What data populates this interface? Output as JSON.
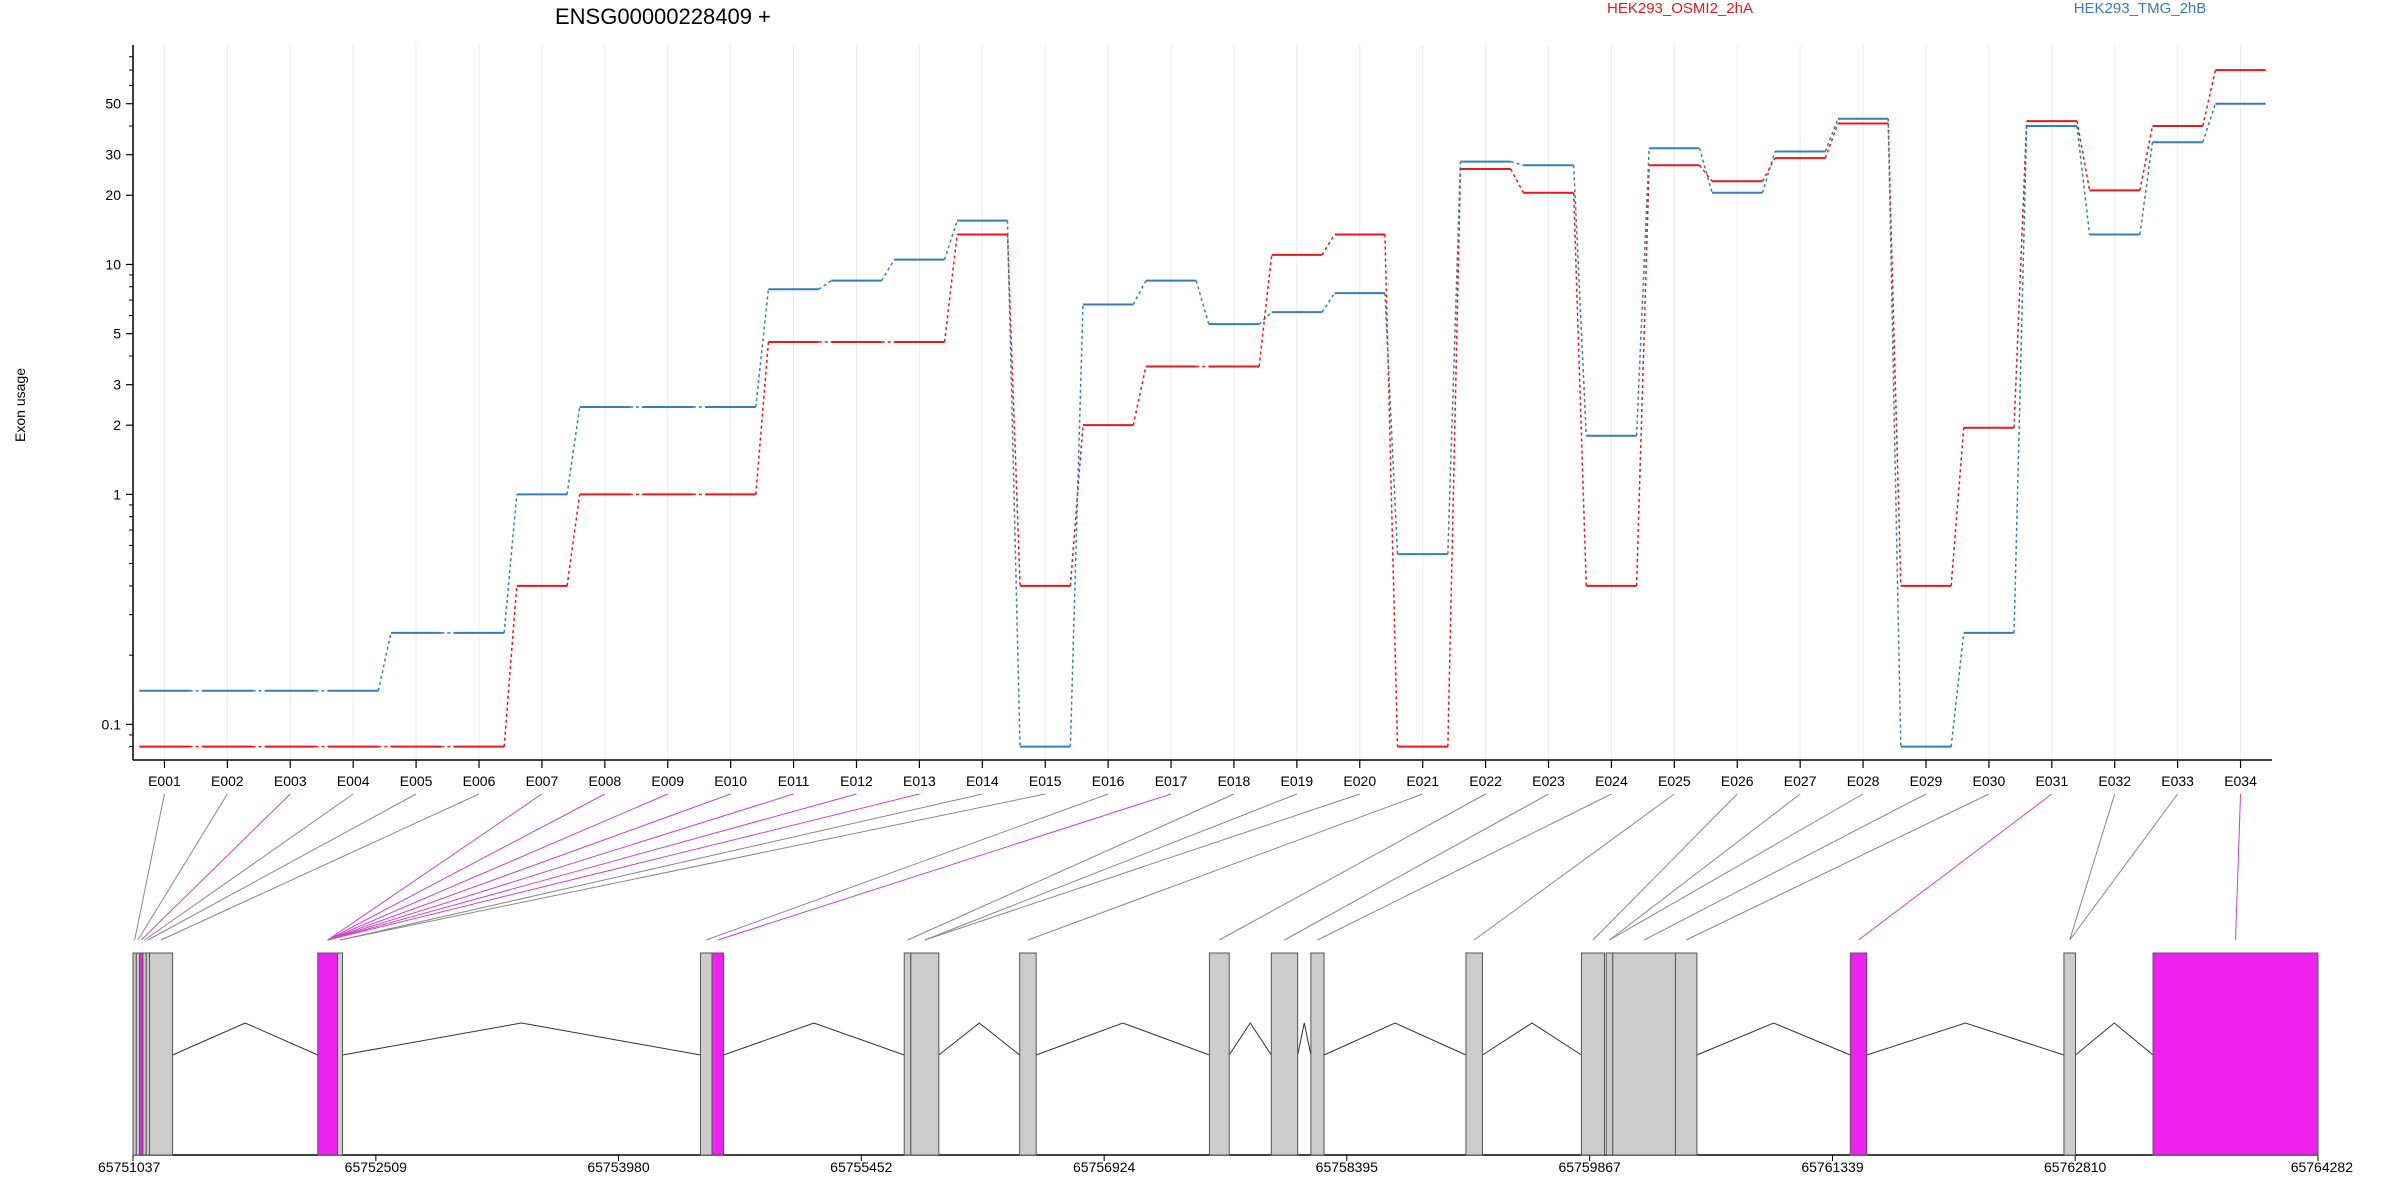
{
  "chart_data": {
    "type": "line",
    "title": "ENSG00000228409 +",
    "ylabel": "Exon usage",
    "y_scale": "log",
    "ylim": [
      0.07,
      90
    ],
    "y_ticks": [
      0.1,
      1,
      2,
      3,
      5,
      10,
      20,
      30,
      50
    ],
    "y_tick_labels": [
      "0.1",
      "1",
      "2",
      "3",
      "5",
      "10",
      "20",
      "30",
      "50"
    ],
    "categories": [
      "E001",
      "E002",
      "E003",
      "E004",
      "E005",
      "E006",
      "E007",
      "E008",
      "E009",
      "E010",
      "E011",
      "E012",
      "E013",
      "E014",
      "E015",
      "E016",
      "E017",
      "E018",
      "E019",
      "E020",
      "E021",
      "E022",
      "E023",
      "E024",
      "E025",
      "E026",
      "E027",
      "E028",
      "E029",
      "E030",
      "E031",
      "E032",
      "E033",
      "E034"
    ],
    "legend_position": "top",
    "grid": true,
    "series": [
      {
        "name": "HEK293_OSMI2_2hA",
        "color": "#e41a1c",
        "values": [
          0.08,
          0.08,
          0.08,
          0.08,
          0.08,
          0.08,
          0.4,
          1.0,
          1.0,
          1.0,
          4.6,
          4.6,
          4.6,
          13.5,
          0.4,
          2.0,
          3.6,
          3.6,
          11.0,
          13.5,
          0.08,
          26,
          20.5,
          0.4,
          27,
          23,
          29,
          41,
          0.4,
          1.95,
          42,
          21,
          40,
          70
        ]
      },
      {
        "name": "HEK293_TMG_2hB",
        "color": "#377eb8",
        "values": [
          0.14,
          0.14,
          0.14,
          0.14,
          0.25,
          0.25,
          1.0,
          2.4,
          2.4,
          2.4,
          7.8,
          8.5,
          10.5,
          15.5,
          0.08,
          6.7,
          8.5,
          5.5,
          6.2,
          7.5,
          0.55,
          28,
          27,
          1.8,
          32,
          20.5,
          31,
          43,
          0.08,
          0.25,
          40,
          13.5,
          34,
          50
        ]
      }
    ],
    "gene_model": {
      "coord_ticks": [
        "65751037",
        "65752509",
        "65753980",
        "65755452",
        "65756924",
        "65758395",
        "65759867",
        "65761339",
        "65762810",
        "65764282"
      ],
      "exon_colors": {
        "normal": "#cccccc",
        "highlight": "#ee22ee"
      },
      "exons": [
        {
          "id": "E001",
          "start": 65751037,
          "end": 65751057,
          "highlight": false
        },
        {
          "id": "E002",
          "start": 65751057,
          "end": 65751077,
          "highlight": false
        },
        {
          "id": "E003",
          "start": 65751077,
          "end": 65751097,
          "highlight": true
        },
        {
          "id": "E004",
          "start": 65751097,
          "end": 65751117,
          "highlight": false
        },
        {
          "id": "E005",
          "start": 65751117,
          "end": 65751137,
          "highlight": false
        },
        {
          "id": "E006",
          "start": 65751137,
          "end": 65751277,
          "highlight": false
        },
        {
          "id": "E007",
          "start": 65752157,
          "end": 65752277,
          "highlight": true
        },
        {
          "id": "E008",
          "start": 65752277,
          "end": 65752307,
          "highlight": false
        },
        {
          "id": "E009",
          "start": 65754477,
          "end": 65754547,
          "highlight": false
        },
        {
          "id": "E010",
          "start": 65754547,
          "end": 65754617,
          "highlight": true
        },
        {
          "id": "E011",
          "start": 65755712,
          "end": 65755752,
          "highlight": false
        },
        {
          "id": "E012",
          "start": 65755752,
          "end": 65755922,
          "highlight": false
        },
        {
          "id": "E013",
          "start": 65756412,
          "end": 65756512,
          "highlight": false
        },
        {
          "id": "E014",
          "start": 65757562,
          "end": 65757682,
          "highlight": false
        },
        {
          "id": "E015",
          "start": 65757937,
          "end": 65758097,
          "highlight": false
        },
        {
          "id": "E016",
          "start": 65758177,
          "end": 65758257,
          "highlight": false
        },
        {
          "id": "E017",
          "start": 65759117,
          "end": 65759217,
          "highlight": false
        },
        {
          "id": "E018",
          "start": 65759817,
          "end": 65759957,
          "highlight": false
        },
        {
          "id": "E019",
          "start": 65759967,
          "end": 65760007,
          "highlight": false
        },
        {
          "id": "E020",
          "start": 65760007,
          "end": 65760387,
          "highlight": false
        },
        {
          "id": "E021",
          "start": 65760387,
          "end": 65760517,
          "highlight": false
        },
        {
          "id": "E022",
          "start": 65761447,
          "end": 65761547,
          "highlight": true
        },
        {
          "id": "E023",
          "start": 65762742,
          "end": 65762812,
          "highlight": false
        },
        {
          "id": "E024",
          "start": 65763282,
          "end": 65764282,
          "highlight": true
        }
      ],
      "connector_map": [
        0,
        1,
        2,
        3,
        4,
        5,
        6,
        6,
        6,
        6,
        6,
        6,
        6,
        7,
        7,
        8,
        9,
        10,
        11,
        11,
        12,
        13,
        14,
        15,
        16,
        17,
        18,
        18,
        19,
        20,
        21,
        22,
        22,
        23
      ]
    }
  }
}
